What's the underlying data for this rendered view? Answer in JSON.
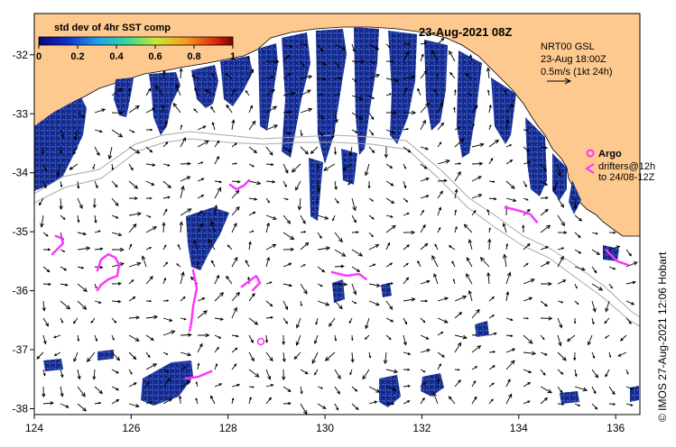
{
  "map": {
    "title": "23-Aug-2021 08Z",
    "credit": "©  IMOS 27-Aug-2021 12:06 Hobart",
    "x_ticks": [
      "124",
      "126",
      "128",
      "130",
      "132",
      "134",
      "136"
    ],
    "y_ticks": [
      "-32",
      "-33",
      "-34",
      "-35",
      "-36",
      "-37",
      "-38"
    ],
    "lon_range": [
      124,
      136.5
    ],
    "lat_range": [
      -38.1,
      -31.3
    ],
    "colorbar": {
      "label": "std dev of 4hr SST comp",
      "ticks": [
        "0",
        "0.2",
        "0.4",
        "0.6",
        "0.8",
        "1"
      ]
    },
    "current_info": {
      "line1": "NRT00 GSL",
      "line2": "23-Aug 18:00Z",
      "line3": "0.5m/s (1kt 24h)"
    },
    "argo": {
      "label": "Argo",
      "drifters_line1": "drifters@12h",
      "drifters_line2": "to 24/08-12Z"
    },
    "colors": {
      "land": "#fdc98f",
      "sst_dark": "#1a2a8c",
      "sst_mid": "#2f56c8",
      "sst_light": "#3fa8d8",
      "drifter": "#ff33ff",
      "isobath": "#a8a8a8"
    }
  }
}
